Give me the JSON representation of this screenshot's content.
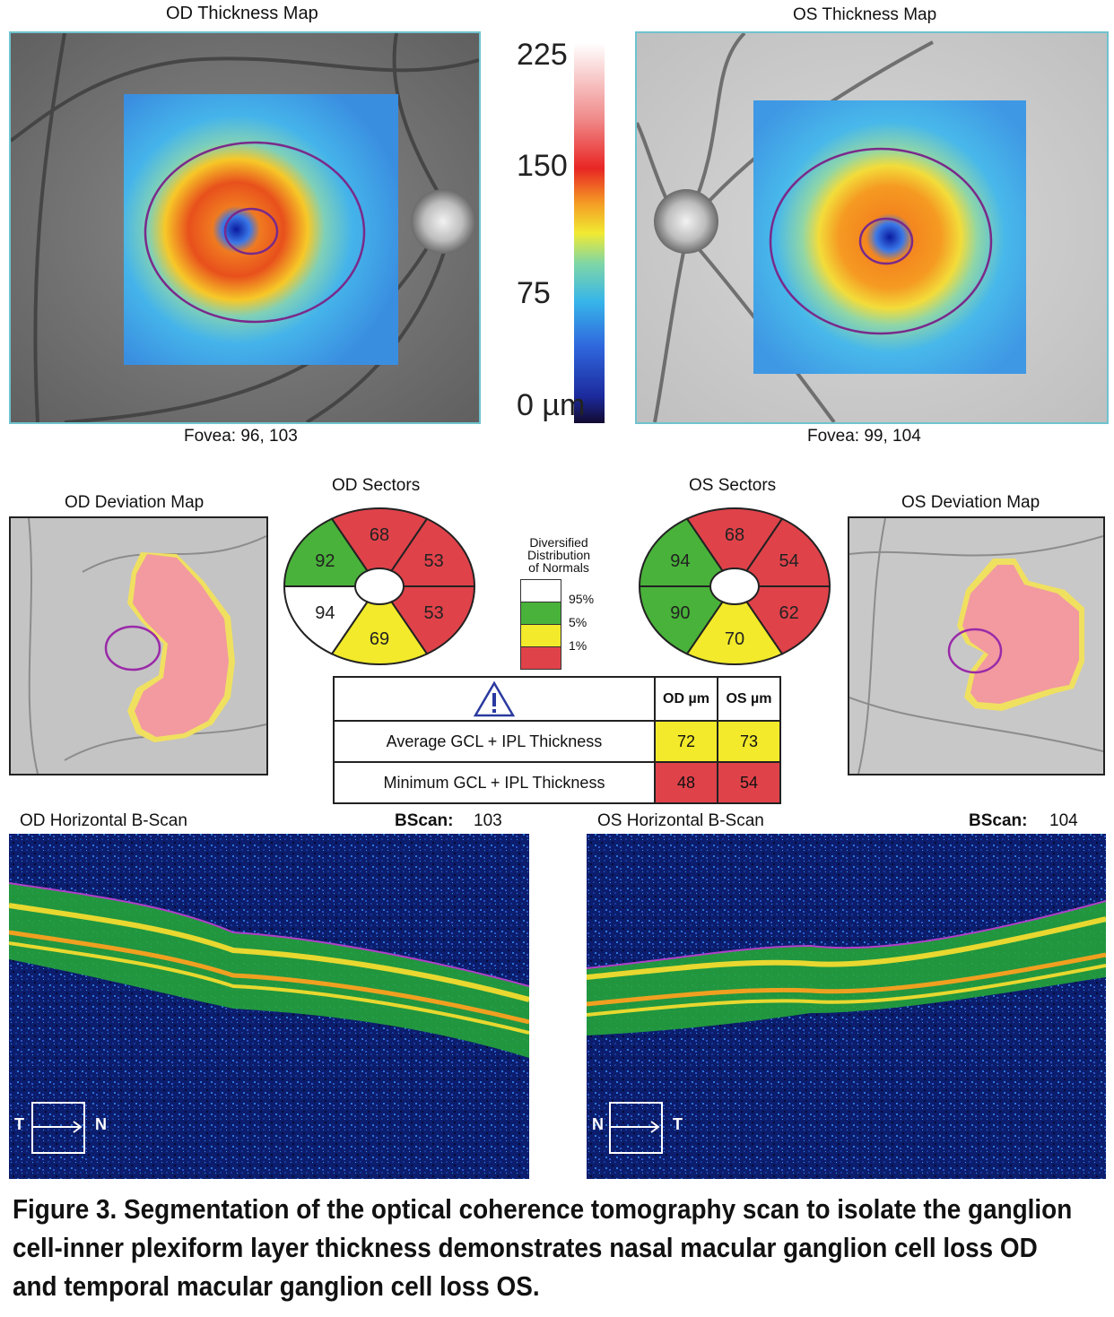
{
  "od_map": {
    "title": "OD Thickness Map",
    "fovea": "Fovea: 96, 103"
  },
  "os_map": {
    "title": "OS Thickness Map",
    "fovea": "Fovea: 99, 104"
  },
  "scale": {
    "ticks": [
      "225",
      "150",
      "75",
      "0 µm"
    ]
  },
  "od_deviation": {
    "title": "OD Deviation Map"
  },
  "os_deviation": {
    "title": "OS Deviation Map"
  },
  "od_sectors": {
    "title": "OD Sectors",
    "values": [
      "68",
      "53",
      "53",
      "69",
      "94",
      "92"
    ],
    "colors": [
      "#e0424a",
      "#e0424a",
      "#e0424a",
      "#f2ea2a",
      "#ffffff",
      "#49b23a"
    ]
  },
  "os_sectors": {
    "title": "OS Sectors",
    "values": [
      "68",
      "54",
      "62",
      "70",
      "90",
      "94"
    ],
    "colors": [
      "#e0424a",
      "#e0424a",
      "#e0424a",
      "#f2ea2a",
      "#49b23a",
      "#49b23a"
    ]
  },
  "legend": {
    "title": [
      "Diversified",
      "Distribution",
      "of Normals"
    ],
    "items": [
      {
        "label": "95%",
        "color": "#ffffff"
      },
      {
        "label": "5%",
        "color": "#49b23a"
      },
      {
        "label": "1%",
        "color": "#f2ea2a"
      },
      {
        "label": "",
        "color": "#e0424a"
      }
    ]
  },
  "summary": {
    "col_od": "OD µm",
    "col_os": "OS µm",
    "rows": [
      {
        "label": "Average GCL + IPL Thickness",
        "od": "72",
        "os": "73",
        "color": "#f2ea2a"
      },
      {
        "label": "Minimum GCL + IPL Thickness",
        "od": "48",
        "os": "54",
        "color": "#e0424a"
      }
    ]
  },
  "od_bscan": {
    "title": "OD Horizontal B-Scan",
    "bscan_label": "BScan:",
    "bscan_value": "103",
    "left": "T",
    "right": "N"
  },
  "os_bscan": {
    "title": "OS Horizontal B-Scan",
    "bscan_label": "BScan:",
    "bscan_value": "104",
    "left": "N",
    "right": "T"
  },
  "caption": "Figure 3. Segmentation of the optical coherence tomography scan to isolate the ganglion cell-inner plexiform layer thickness demonstrates nasal macular ganglion cell loss OD and temporal macular ganglion cell loss OS."
}
